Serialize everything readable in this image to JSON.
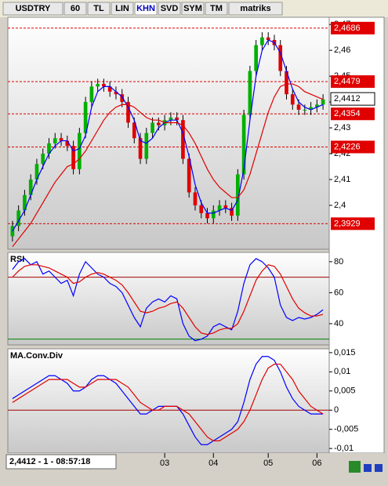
{
  "toolbar": [
    "USDTRY",
    "60",
    "TL",
    "LIN",
    "KHN",
    "SVD",
    "SYM",
    "TM",
    "matriks"
  ],
  "status": "2,4412 - 1 - 08:57:18",
  "x_axis": {
    "ticks": [
      {
        "value": 25,
        "label": "03"
      },
      {
        "value": 33,
        "label": "04"
      },
      {
        "value": 42,
        "label": "05"
      },
      {
        "value": 50,
        "label": "06"
      }
    ]
  },
  "chart_data": [
    {
      "type": "candlestick",
      "up_color": "#00b000",
      "down_color": "#e00000",
      "open": [
        2.388,
        2.392,
        2.398,
        2.404,
        2.41,
        2.416,
        2.42,
        2.424,
        2.426,
        2.425,
        2.423,
        2.414,
        2.428,
        2.44,
        2.446,
        2.447,
        2.446,
        2.444,
        2.443,
        2.44,
        2.432,
        2.426,
        2.418,
        2.428,
        2.432,
        2.431,
        2.433,
        2.434,
        2.433,
        2.418,
        2.405,
        2.4,
        2.397,
        2.395,
        2.398,
        2.4,
        2.399,
        2.396,
        2.412,
        2.435,
        2.452,
        2.462,
        2.465,
        2.464,
        2.462,
        2.452,
        2.443,
        2.439,
        2.437,
        2.437,
        2.438,
        2.439
      ],
      "high": [
        2.394,
        2.4,
        2.406,
        2.412,
        2.418,
        2.422,
        2.426,
        2.428,
        2.428,
        2.427,
        2.425,
        2.43,
        2.442,
        2.448,
        2.449,
        2.449,
        2.448,
        2.446,
        2.445,
        2.442,
        2.434,
        2.428,
        2.43,
        2.434,
        2.434,
        2.435,
        2.436,
        2.436,
        2.435,
        2.42,
        2.407,
        2.402,
        2.399,
        2.4,
        2.402,
        2.402,
        2.401,
        2.414,
        2.437,
        2.454,
        2.464,
        2.467,
        2.467,
        2.466,
        2.464,
        2.454,
        2.445,
        2.441,
        2.439,
        2.44,
        2.441,
        2.443
      ],
      "low": [
        2.386,
        2.39,
        2.396,
        2.402,
        2.408,
        2.414,
        2.418,
        2.422,
        2.423,
        2.421,
        2.412,
        2.412,
        2.426,
        2.438,
        2.444,
        2.444,
        2.442,
        2.441,
        2.438,
        2.43,
        2.424,
        2.416,
        2.416,
        2.426,
        2.429,
        2.429,
        2.431,
        2.431,
        2.416,
        2.403,
        2.398,
        2.395,
        2.393,
        2.393,
        2.396,
        2.397,
        2.394,
        2.394,
        2.41,
        2.433,
        2.45,
        2.46,
        2.462,
        2.46,
        2.45,
        2.441,
        2.437,
        2.435,
        2.435,
        2.435,
        2.436,
        2.437
      ],
      "close": [
        2.392,
        2.398,
        2.404,
        2.41,
        2.416,
        2.42,
        2.424,
        2.426,
        2.425,
        2.423,
        2.414,
        2.428,
        2.44,
        2.446,
        2.447,
        2.446,
        2.444,
        2.443,
        2.44,
        2.432,
        2.426,
        2.418,
        2.428,
        2.432,
        2.431,
        2.433,
        2.434,
        2.433,
        2.418,
        2.405,
        2.4,
        2.397,
        2.395,
        2.398,
        2.4,
        2.399,
        2.396,
        2.412,
        2.435,
        2.452,
        2.462,
        2.465,
        2.464,
        2.462,
        2.452,
        2.443,
        2.439,
        2.437,
        2.437,
        2.438,
        2.439,
        2.441
      ],
      "series": [
        {
          "color": "#0000ff",
          "values": [
            2.39,
            2.394,
            2.398,
            2.404,
            2.41,
            2.415,
            2.42,
            2.423,
            2.425,
            2.425,
            2.421,
            2.422,
            2.427,
            2.438,
            2.444,
            2.446,
            2.446,
            2.444,
            2.442,
            2.438,
            2.433,
            2.425,
            2.424,
            2.426,
            2.43,
            2.432,
            2.433,
            2.433,
            2.428,
            2.419,
            2.408,
            2.401,
            2.397,
            2.397,
            2.398,
            2.399,
            2.398,
            2.402,
            2.414,
            2.433,
            2.45,
            2.46,
            2.464,
            2.463,
            2.459,
            2.452,
            2.445,
            2.44,
            2.438,
            2.437,
            2.438,
            2.439
          ]
        },
        {
          "color": "#e00000",
          "values": [
            2.384,
            2.387,
            2.39,
            2.393,
            2.397,
            2.401,
            2.405,
            2.409,
            2.412,
            2.415,
            2.416,
            2.418,
            2.421,
            2.425,
            2.429,
            2.433,
            2.436,
            2.438,
            2.439,
            2.439,
            2.438,
            2.436,
            2.434,
            2.433,
            2.433,
            2.432,
            2.432,
            2.432,
            2.431,
            2.428,
            2.424,
            2.419,
            2.414,
            2.41,
            2.407,
            2.405,
            2.403,
            2.403,
            2.406,
            2.412,
            2.42,
            2.428,
            2.436,
            2.442,
            2.446,
            2.447,
            2.447,
            2.446,
            2.444,
            2.443,
            2.442,
            2.441
          ]
        }
      ],
      "ylim": [
        2.383,
        2.4728
      ],
      "yticks": [
        {
          "value": 2.47,
          "label": "2,47"
        },
        {
          "value": 2.46,
          "label": "2,46"
        },
        {
          "value": 2.45,
          "label": "2,45"
        },
        {
          "value": 2.44,
          "label": "2,44"
        },
        {
          "value": 2.43,
          "label": "2,43"
        },
        {
          "value": 2.42,
          "label": "2,42"
        },
        {
          "value": 2.41,
          "label": "2,41"
        },
        {
          "value": 2.4,
          "label": "2,4"
        }
      ],
      "levels": [
        {
          "value": 2.4686,
          "label": "2,4686"
        },
        {
          "value": 2.4479,
          "label": "2,4479"
        },
        {
          "value": 2.4354,
          "label": "2,4354"
        },
        {
          "value": 2.4226,
          "label": "2,4226"
        },
        {
          "value": 2.3929,
          "label": "2,3929"
        }
      ],
      "level_color": "#e00000",
      "last": {
        "value": 2.4412,
        "label": "2,4412"
      }
    },
    {
      "type": "line",
      "title": "RSI",
      "series": [
        {
          "color": "#0000ff",
          "values": [
            75,
            80,
            82,
            78,
            80,
            72,
            74,
            70,
            66,
            68,
            58,
            72,
            80,
            76,
            72,
            70,
            66,
            64,
            60,
            52,
            44,
            38,
            50,
            54,
            56,
            54,
            58,
            56,
            40,
            32,
            29,
            30,
            32,
            38,
            40,
            38,
            36,
            48,
            66,
            78,
            82,
            80,
            76,
            70,
            52,
            44,
            42,
            44,
            43,
            44,
            46,
            49
          ]
        },
        {
          "color": "#e00000",
          "values": [
            70,
            74,
            77,
            78,
            78,
            77,
            76,
            74,
            72,
            70,
            66,
            67,
            70,
            72,
            73,
            72,
            70,
            68,
            65,
            60,
            54,
            48,
            47,
            48,
            50,
            51,
            53,
            54,
            50,
            44,
            38,
            34,
            33,
            34,
            36,
            37,
            37,
            40,
            48,
            58,
            68,
            74,
            78,
            77,
            72,
            64,
            56,
            50,
            47,
            45,
            45,
            46
          ]
        }
      ],
      "ylim": [
        26.3,
        86
      ],
      "yticks": [
        80,
        60,
        40
      ],
      "hlines": [
        {
          "value": 70,
          "color": "#a00000"
        },
        {
          "value": 30,
          "color": "#008000"
        }
      ]
    },
    {
      "type": "line",
      "title": "MA.Conv.Div",
      "series": [
        {
          "color": "#0000ff",
          "values": [
            0.003,
            0.004,
            0.005,
            0.006,
            0.007,
            0.008,
            0.009,
            0.009,
            0.008,
            0.007,
            0.005,
            0.005,
            0.006,
            0.008,
            0.009,
            0.009,
            0.008,
            0.007,
            0.005,
            0.003,
            0.001,
            -0.001,
            -0.001,
            0,
            0.001,
            0.001,
            0.001,
            0.001,
            -0.001,
            -0.004,
            -0.007,
            -0.009,
            -0.009,
            -0.008,
            -0.007,
            -0.006,
            -0.005,
            -0.003,
            0.002,
            0.008,
            0.012,
            0.014,
            0.014,
            0.013,
            0.01,
            0.006,
            0.003,
            0.001,
            0,
            -0.001,
            -0.001,
            -0.001
          ]
        },
        {
          "color": "#e00000",
          "values": [
            0.002,
            0.003,
            0.004,
            0.005,
            0.006,
            0.007,
            0.008,
            0.008,
            0.008,
            0.008,
            0.007,
            0.006,
            0.006,
            0.007,
            0.008,
            0.008,
            0.008,
            0.008,
            0.007,
            0.006,
            0.004,
            0.002,
            0.001,
            0,
            0,
            0.001,
            0.001,
            0.001,
            0,
            -0.001,
            -0.003,
            -0.005,
            -0.007,
            -0.008,
            -0.008,
            -0.007,
            -0.006,
            -0.005,
            -0.003,
            0,
            0.004,
            0.008,
            0.011,
            0.012,
            0.012,
            0.01,
            0.008,
            0.005,
            0.003,
            0.001,
            0,
            -0.001
          ]
        }
      ],
      "ylim": [
        -0.0112,
        0.016
      ],
      "yticks": [
        {
          "value": 0.015,
          "label": "0,015"
        },
        {
          "value": 0.01,
          "label": "0,01"
        },
        {
          "value": 0.005,
          "label": "0,005"
        },
        0,
        {
          "value": -0.005,
          "label": "-0,005"
        },
        {
          "value": -0.01,
          "label": "-0,01"
        }
      ],
      "hlines": [
        {
          "value": 0,
          "color": "#a00000"
        }
      ]
    }
  ]
}
